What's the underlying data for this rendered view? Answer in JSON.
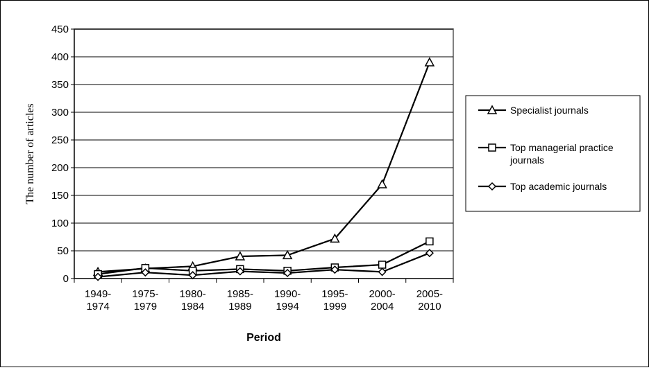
{
  "chart_data": {
    "type": "line",
    "xlabel": "Period",
    "ylabel": "The number of articles",
    "ylim": [
      0,
      450
    ],
    "yticks": [
      0,
      50,
      100,
      150,
      200,
      250,
      300,
      350,
      400,
      450
    ],
    "grid": true,
    "legend_position": "right",
    "categories": [
      [
        "1949-",
        "1974"
      ],
      [
        "1975-",
        "1979"
      ],
      [
        "1980-",
        "1984"
      ],
      [
        "1985-",
        "1989"
      ],
      [
        "1990-",
        "1994"
      ],
      [
        "1995-",
        "1999"
      ],
      [
        "2000-",
        "2004"
      ],
      [
        "2005-",
        "2010"
      ]
    ],
    "series": [
      {
        "name": "Specialist journals",
        "marker": "triangle",
        "values": [
          12,
          18,
          22,
          40,
          42,
          72,
          170,
          390
        ]
      },
      {
        "name_lines": [
          "Top managerial practice",
          "journals"
        ],
        "marker": "square",
        "values": [
          8,
          19,
          14,
          17,
          14,
          20,
          25,
          67
        ]
      },
      {
        "name": "Top academic journals",
        "marker": "diamond",
        "values": [
          3,
          11,
          6,
          13,
          10,
          16,
          12,
          46
        ]
      }
    ]
  }
}
